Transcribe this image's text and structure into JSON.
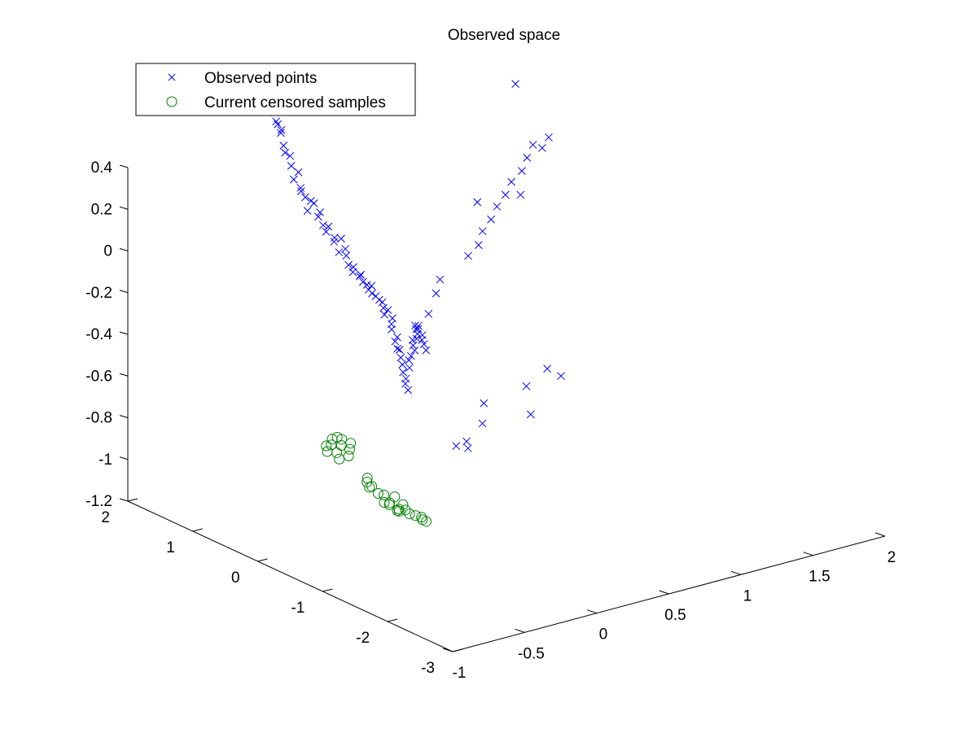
{
  "chart_data": {
    "type": "scatter",
    "title": "Observed space",
    "legend": {
      "placement": "top-left",
      "entries": [
        "Observed points",
        "Current censored samples"
      ]
    },
    "axes": {
      "x": {
        "range": [
          -1,
          2
        ],
        "ticks": [
          -1,
          -0.5,
          0,
          0.5,
          1,
          1.5,
          2
        ],
        "tick_labels": [
          "-1",
          "-0.5",
          "0",
          "0.5",
          "1",
          "1.5",
          "2"
        ]
      },
      "y": {
        "range": [
          -3,
          2
        ],
        "ticks": [
          -3,
          -2,
          -1,
          0,
          1,
          2
        ],
        "tick_labels": [
          "-3",
          "-2",
          "-1",
          "0",
          "1",
          "2"
        ]
      },
      "z": {
        "range": [
          -1.2,
          0.4
        ],
        "ticks": [
          -1.2,
          -1,
          -0.8,
          -0.6,
          -0.4,
          -0.2,
          0,
          0.2,
          0.4
        ],
        "tick_labels": [
          "-1.2",
          "-1",
          "-0.8",
          "-0.6",
          "-0.4",
          "-0.2",
          "0",
          "0.2",
          "0.4"
        ]
      }
    },
    "grid": false,
    "series": [
      {
        "name": "Observed points",
        "marker": "x",
        "color": "#0000ff",
        "points": [
          [
            -0.82,
            0.14,
            0.9
          ],
          [
            -0.8,
            0.16,
            0.85
          ],
          [
            -0.83,
            0.12,
            0.92
          ],
          [
            -0.78,
            0.18,
            0.83
          ],
          [
            -0.76,
            0.17,
            0.8
          ],
          [
            -0.75,
            0.2,
            0.78
          ],
          [
            -0.74,
            0.18,
            0.72
          ],
          [
            -0.72,
            0.2,
            0.68
          ],
          [
            -0.7,
            0.15,
            0.62
          ],
          [
            -0.69,
            0.19,
            0.66
          ],
          [
            -0.66,
            0.2,
            0.54
          ],
          [
            -0.65,
            0.15,
            0.58
          ],
          [
            -0.63,
            0.16,
            0.5
          ],
          [
            -0.6,
            0.22,
            0.47
          ],
          [
            -0.58,
            0.2,
            0.44
          ],
          [
            -0.56,
            0.21,
            0.37
          ],
          [
            -0.55,
            0.18,
            0.42
          ],
          [
            -0.52,
            0.2,
            0.4
          ],
          [
            -0.5,
            0.15,
            0.36
          ],
          [
            -0.49,
            0.2,
            0.33
          ],
          [
            -0.47,
            0.17,
            0.29
          ],
          [
            -0.44,
            0.19,
            0.25
          ],
          [
            -0.42,
            0.2,
            0.27
          ],
          [
            -0.4,
            0.15,
            0.22
          ],
          [
            -0.38,
            0.2,
            0.19
          ],
          [
            -0.36,
            0.17,
            0.14
          ],
          [
            -0.34,
            0.18,
            0.2
          ],
          [
            -0.32,
            0.16,
            0.15
          ],
          [
            -0.3,
            0.19,
            0.11
          ],
          [
            -0.28,
            0.2,
            0.06
          ],
          [
            -0.26,
            0.17,
            0.05
          ],
          [
            -0.25,
            0.2,
            0.02
          ],
          [
            -0.22,
            0.16,
            0.0
          ],
          [
            -0.2,
            0.19,
            0.0
          ],
          [
            -0.18,
            0.2,
            -0.04
          ],
          [
            -0.17,
            0.16,
            -0.05
          ],
          [
            -0.15,
            0.18,
            -0.08
          ],
          [
            -0.13,
            0.17,
            -0.1
          ],
          [
            -0.12,
            0.2,
            -0.07
          ],
          [
            -0.1,
            0.18,
            -0.12
          ],
          [
            -0.08,
            0.17,
            -0.14
          ],
          [
            -0.06,
            0.15,
            -0.18
          ],
          [
            -0.05,
            0.19,
            -0.16
          ],
          [
            -0.04,
            0.18,
            -0.22
          ],
          [
            -0.02,
            0.17,
            -0.2
          ],
          [
            0.0,
            0.16,
            -0.27
          ],
          [
            0.01,
            0.18,
            -0.3
          ],
          [
            0.02,
            0.19,
            -0.25
          ],
          [
            0.03,
            0.17,
            -0.36
          ],
          [
            0.04,
            0.16,
            -0.34
          ],
          [
            0.05,
            0.18,
            -0.4
          ],
          [
            0.06,
            0.15,
            -0.44
          ],
          [
            0.07,
            0.19,
            -0.41
          ],
          [
            0.08,
            0.17,
            -0.48
          ],
          [
            0.09,
            0.18,
            -0.52
          ],
          [
            0.1,
            0.16,
            -0.55
          ],
          [
            0.11,
            0.19,
            -0.58
          ],
          [
            0.12,
            0.17,
            -0.61
          ],
          [
            0.12,
            0.15,
            -0.5
          ],
          [
            0.13,
            0.18,
            -0.47
          ],
          [
            0.14,
            0.17,
            -0.45
          ],
          [
            0.15,
            0.16,
            -0.4
          ],
          [
            0.16,
            0.19,
            -0.38
          ],
          [
            0.17,
            0.15,
            -0.37
          ],
          [
            0.17,
            0.18,
            -0.43
          ],
          [
            0.18,
            0.16,
            -0.35
          ],
          [
            0.19,
            0.17,
            -0.33
          ],
          [
            0.2,
            0.19,
            -0.32
          ],
          [
            0.21,
            0.15,
            -0.36
          ],
          [
            0.22,
            0.18,
            -0.39
          ],
          [
            0.23,
            0.17,
            -0.41
          ],
          [
            0.24,
            0.16,
            -0.44
          ],
          [
            0.9,
            1.0,
            -1.12
          ],
          [
            0.85,
            1.05,
            -1.14
          ],
          [
            1.0,
            1.2,
            -1.2
          ],
          [
            1.3,
            0.9,
            -1.05
          ],
          [
            1.2,
            1.4,
            -1.05
          ],
          [
            1.1,
            1.2,
            -1.1
          ],
          [
            1.45,
            1.3,
            -1.0
          ],
          [
            1.6,
            1.1,
            -0.95
          ],
          [
            1.55,
            1.2,
            -0.92
          ],
          [
            1.6,
            1.8,
            0.35
          ],
          [
            1.5,
            1.5,
            -0.12
          ],
          [
            1.2,
            1.5,
            -0.1
          ],
          [
            0.25,
            0.35,
            -0.35
          ],
          [
            0.28,
            0.4,
            -0.38
          ],
          [
            0.32,
            0.3,
            -0.3
          ],
          [
            0.35,
            0.25,
            -0.2
          ],
          [
            0.4,
            0.3,
            -0.15
          ],
          [
            0.55,
            0.2,
            -0.05
          ],
          [
            0.6,
            0.15,
            0.0
          ],
          [
            0.65,
            0.2,
            0.05
          ],
          [
            0.7,
            0.18,
            0.1
          ],
          [
            0.75,
            0.2,
            0.15
          ],
          [
            0.8,
            0.18,
            0.2
          ],
          [
            0.85,
            0.2,
            0.25
          ],
          [
            0.9,
            0.15,
            0.3
          ],
          [
            0.95,
            0.18,
            0.35
          ],
          [
            1.0,
            0.2,
            0.4
          ],
          [
            1.05,
            0.17,
            0.38
          ],
          [
            1.1,
            0.18,
            0.42
          ]
        ]
      },
      {
        "name": "Current censored samples",
        "marker": "o",
        "color": "#008000",
        "points": [
          [
            -0.75,
            -0.5,
            -0.62
          ],
          [
            -0.7,
            -0.48,
            -0.6
          ],
          [
            -0.72,
            -0.45,
            -0.66
          ],
          [
            -0.68,
            -0.42,
            -0.64
          ],
          [
            -0.65,
            -0.44,
            -0.68
          ],
          [
            -0.66,
            -0.5,
            -0.7
          ],
          [
            -0.62,
            -0.38,
            -0.62
          ],
          [
            -0.6,
            -0.4,
            -0.66
          ],
          [
            -0.58,
            -0.36,
            -0.64
          ],
          [
            -0.55,
            -0.4,
            -0.72
          ],
          [
            -0.52,
            -0.35,
            -0.7
          ],
          [
            -0.5,
            -0.32,
            -0.68
          ],
          [
            -0.42,
            -0.4,
            -0.85
          ],
          [
            -0.4,
            -0.35,
            -0.88
          ],
          [
            -0.38,
            -0.38,
            -0.9
          ],
          [
            -0.36,
            -0.3,
            -0.92
          ],
          [
            -0.3,
            -0.3,
            -0.96
          ],
          [
            -0.28,
            -0.35,
            -1.0
          ],
          [
            -0.25,
            -0.28,
            -0.98
          ],
          [
            -0.22,
            -0.3,
            -1.02
          ],
          [
            -0.2,
            -0.25,
            -1.04
          ],
          [
            -0.18,
            -0.33,
            -1.06
          ],
          [
            -0.14,
            -0.2,
            -1.02
          ],
          [
            -0.12,
            -0.22,
            -1.08
          ],
          [
            -0.1,
            -0.18,
            -1.1
          ],
          [
            -0.06,
            -0.15,
            -1.08
          ],
          [
            -0.02,
            -0.1,
            -1.12
          ],
          [
            0.0,
            -0.12,
            -1.14
          ],
          [
            0.05,
            -0.1,
            -1.16
          ],
          [
            0.1,
            -0.08,
            -1.18
          ],
          [
            0.12,
            -0.05,
            -1.2
          ],
          [
            0.16,
            -0.02,
            -1.22
          ]
        ]
      }
    ]
  },
  "legend_labels": {
    "observed": "Observed points",
    "censored": "Current censored samples"
  }
}
